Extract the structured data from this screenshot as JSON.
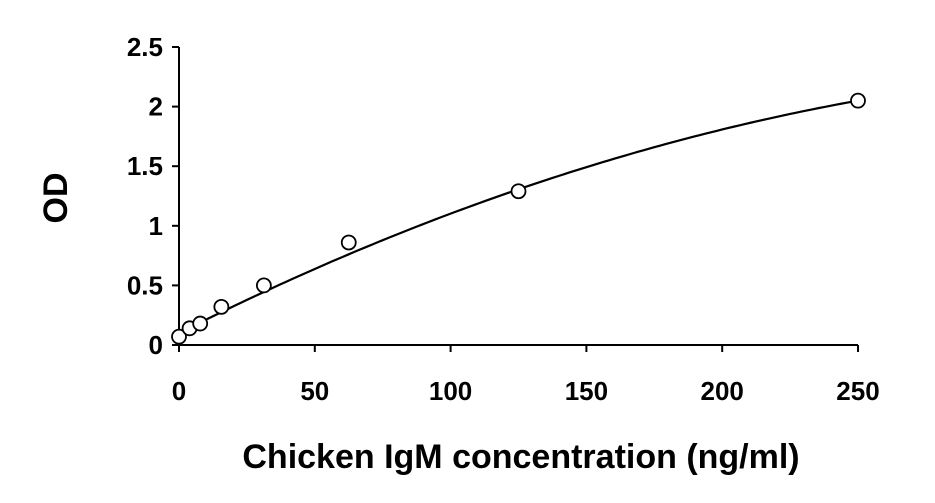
{
  "chart_data": {
    "type": "scatter",
    "title": "",
    "xlabel": "Chicken IgM concentration (ng/ml)",
    "ylabel": "OD",
    "xlim": [
      0,
      250
    ],
    "ylim": [
      0,
      2.5
    ],
    "x_ticks": [
      0,
      50,
      100,
      150,
      200,
      250
    ],
    "y_ticks": [
      0,
      0.5,
      1,
      1.5,
      2,
      2.5
    ],
    "x_tick_labels": [
      "0",
      "50",
      "100",
      "150",
      "200",
      "250"
    ],
    "y_tick_labels": [
      "0",
      "0.5",
      "1",
      "1.5",
      "2",
      "2.5"
    ],
    "grid": false,
    "legend": "none",
    "marker": "open-circle",
    "colors": {
      "axis": "#000000",
      "marker": "#000000",
      "curve": "#000000"
    },
    "series": [
      {
        "x": [
          0,
          3.9,
          7.8,
          15.6,
          31.25,
          62.5,
          125,
          250
        ],
        "y": [
          0.07,
          0.14,
          0.18,
          0.32,
          0.5,
          0.86,
          1.29,
          2.05
        ]
      }
    ],
    "fit_curve": {
      "type": "polynomial",
      "coefficients": [
        0.1,
        0.0115,
        -1.48e-05
      ]
    }
  }
}
